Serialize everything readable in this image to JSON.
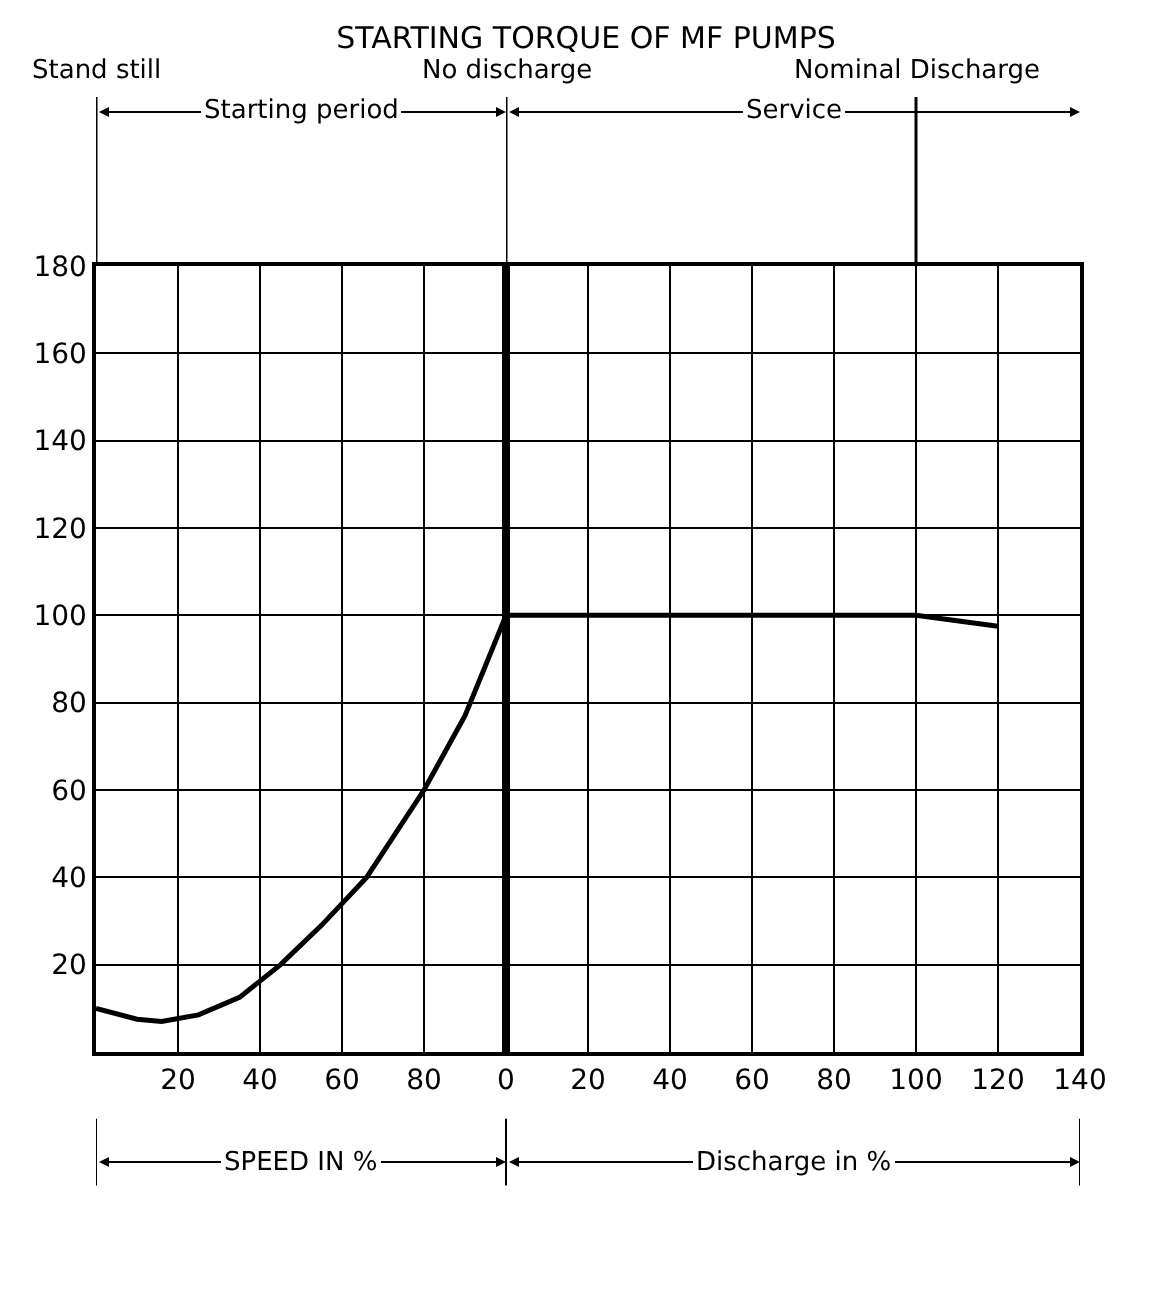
{
  "chart_data": [
    {
      "type": "line",
      "title": "STARTING TORQUE OF MF PUMPS",
      "xlabel": "SPEED IN %",
      "series": [
        {
          "color": "#000000",
          "x": [
            0,
            10,
            16,
            25,
            35,
            45,
            55,
            66,
            80,
            90,
            100
          ],
          "values": [
            10,
            7.5,
            7,
            8.5,
            12.5,
            20,
            29,
            40,
            60,
            77,
            100
          ]
        }
      ],
      "xlim": [
        0,
        100
      ],
      "xticks": [
        20,
        40,
        60,
        80
      ],
      "ylim": [
        0,
        180
      ],
      "yticks": [
        20,
        40,
        60,
        80,
        100,
        120,
        140,
        160,
        180
      ],
      "grid": true,
      "marker": "none",
      "line_style": "solid",
      "ref_lines": [
        {
          "axis": "x",
          "value": 0,
          "label": "Stand still"
        }
      ],
      "annotations": [
        "Starting period"
      ]
    },
    {
      "type": "line",
      "xlabel": "Discharge in %",
      "series": [
        {
          "color": "#000000",
          "x": [
            0,
            100,
            120
          ],
          "values": [
            100,
            100,
            97.5
          ]
        }
      ],
      "xlim": [
        0,
        140
      ],
      "xticks": [
        0,
        20,
        40,
        60,
        80,
        100,
        120,
        140
      ],
      "ylim": [
        0,
        180
      ],
      "yticks": [
        20,
        40,
        60,
        80,
        100,
        120,
        140,
        160,
        180
      ],
      "tick_labels": "x",
      "grid": true,
      "marker": "none",
      "line_style": "solid",
      "ref_lines": [
        {
          "axis": "x",
          "value": 0,
          "label": "No discharge"
        },
        {
          "axis": "x",
          "value": 100,
          "label": "Nominal Discharge"
        }
      ],
      "annotations": [
        "Service"
      ]
    }
  ]
}
